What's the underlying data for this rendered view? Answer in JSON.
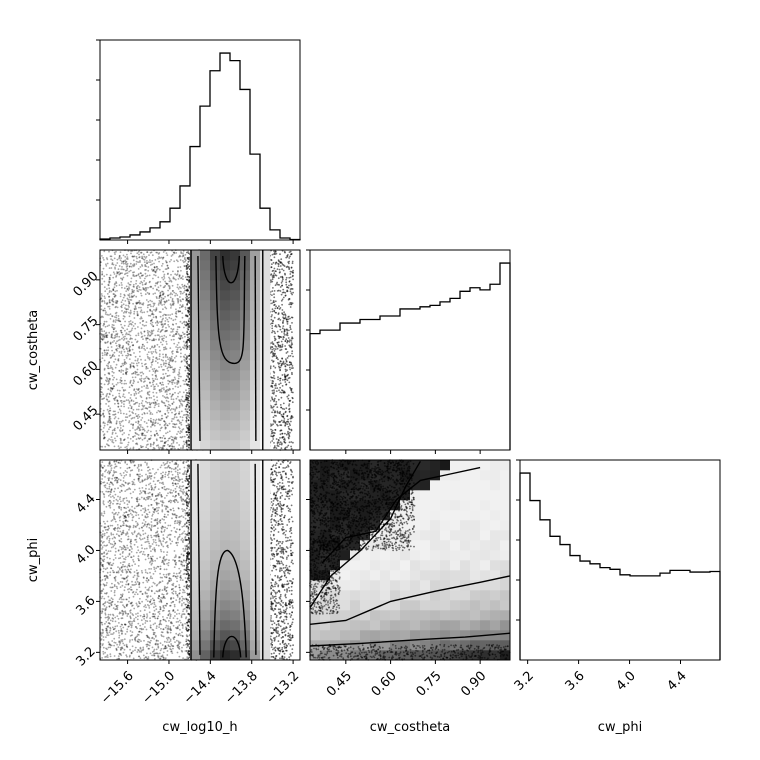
{
  "chart_data": {
    "type": "corner",
    "parameters": [
      "cw_log10_h",
      "cw_costheta",
      "cw_phi"
    ],
    "axis_labels": {
      "cw_log10_h": "cw_log10_h",
      "cw_costheta": "cw_costheta",
      "cw_phi": "cw_phi"
    },
    "ranges": {
      "cw_log10_h": [
        -16.0,
        -13.1
      ],
      "cw_costheta": [
        0.33,
        1.0
      ],
      "cw_phi": [
        3.14,
        4.71
      ]
    },
    "ticks": {
      "cw_log10_h": [
        -15.6,
        -15.0,
        -14.4,
        -13.8,
        -13.2
      ],
      "cw_costheta": [
        0.45,
        0.6,
        0.75,
        0.9
      ],
      "cw_phi": [
        3.2,
        3.6,
        4.0,
        4.4
      ]
    },
    "tick_labels": {
      "cw_log10_h": [
        "−15.6",
        "−15.0",
        "−14.4",
        "−13.8",
        "−13.2"
      ],
      "cw_costheta": [
        "0.45",
        "0.60",
        "0.75",
        "0.90"
      ],
      "cw_phi": [
        "3.2",
        "3.6",
        "4.0",
        "4.4"
      ]
    },
    "histograms": {
      "cw_log10_h": {
        "bin_edges": [
          -16.0,
          -15.855,
          -15.71,
          -15.565,
          -15.42,
          -15.275,
          -15.13,
          -14.985,
          -14.84,
          -14.695,
          -14.55,
          -14.405,
          -14.26,
          -14.115,
          -13.97,
          -13.825,
          -13.68,
          -13.535,
          -13.39,
          -13.245,
          -13.1
        ],
        "counts": [
          0.2,
          0.4,
          0.6,
          1.0,
          1.6,
          2.4,
          3.6,
          6.3,
          10.7,
          18.5,
          26.5,
          33.5,
          37.0,
          35.5,
          29.8,
          17.0,
          6.3,
          2.0,
          0.4,
          0.1
        ]
      },
      "cw_costheta": {
        "bin_edges": [
          0.33,
          0.3635,
          0.397,
          0.4305,
          0.464,
          0.4975,
          0.531,
          0.5645,
          0.598,
          0.6315,
          0.665,
          0.6985,
          0.732,
          0.7655,
          0.799,
          0.8325,
          0.866,
          0.8995,
          0.933,
          0.9665,
          1.0
        ],
        "counts": [
          16.5,
          17.0,
          17.0,
          18.0,
          18.0,
          18.5,
          18.5,
          19.0,
          19.0,
          20.0,
          20.0,
          20.3,
          20.5,
          21.0,
          21.5,
          22.5,
          23.0,
          22.7,
          23.5,
          26.5
        ]
      },
      "cw_phi": {
        "bin_edges": [
          3.14,
          3.2185,
          3.297,
          3.3755,
          3.454,
          3.5325,
          3.611,
          3.6895,
          3.768,
          3.8465,
          3.925,
          4.0035,
          4.082,
          4.1605,
          4.239,
          4.3175,
          4.396,
          4.4745,
          4.553,
          4.6315,
          4.71
        ],
        "counts": [
          34.0,
          29.0,
          25.5,
          22.5,
          21.0,
          19.0,
          18.0,
          17.5,
          16.8,
          16.5,
          15.5,
          15.3,
          15.3,
          15.3,
          15.8,
          16.3,
          16.3,
          16.0,
          16.0,
          16.1
        ]
      }
    }
  }
}
